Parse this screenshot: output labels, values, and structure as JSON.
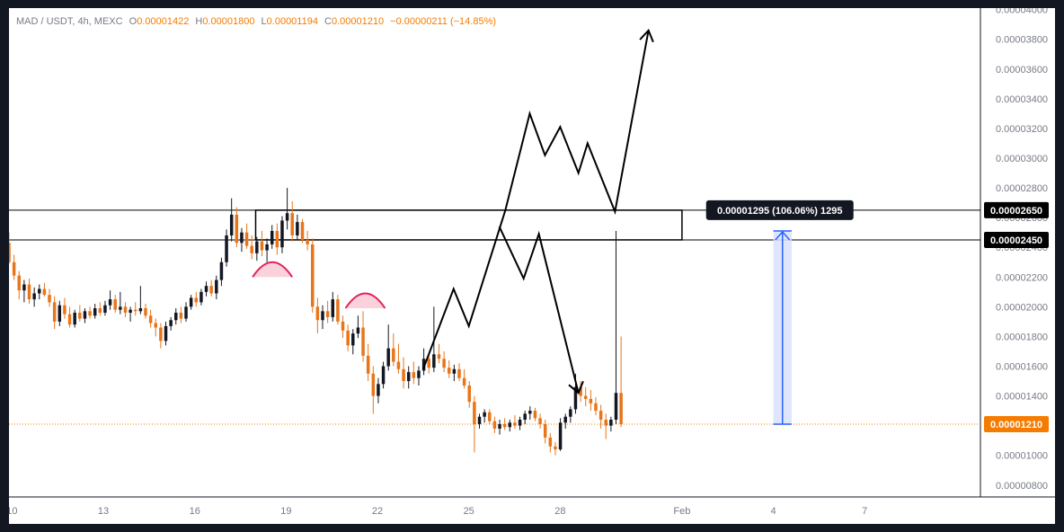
{
  "header": {
    "symbol": "MAD / USDT, 4h, MEXC",
    "o_key": "O",
    "o_val": "0.00001422",
    "h_key": "H",
    "h_val": "0.00001800",
    "l_key": "L",
    "l_val": "0.00001194",
    "c_key": "C",
    "c_val": "0.00001210",
    "change": "−0.00000211 (−14.85%)"
  },
  "chart_data": {
    "type": "candlestick",
    "y_ticks": [
      "0.00004000",
      "0.00003800",
      "0.00003600",
      "0.00003400",
      "0.00003200",
      "0.00003000",
      "0.00002800",
      "0.00002600",
      "0.00002400",
      "0.00002200",
      "0.00002000",
      "0.00001800",
      "0.00001600",
      "0.00001400",
      "0.00001200",
      "0.00001000",
      "0.00000800"
    ],
    "x_ticks": [
      {
        "label": "10",
        "day": 10
      },
      {
        "label": "13",
        "day": 13
      },
      {
        "label": "16",
        "day": 16
      },
      {
        "label": "19",
        "day": 19
      },
      {
        "label": "22",
        "day": 22
      },
      {
        "label": "25",
        "day": 25
      },
      {
        "label": "28",
        "day": 28
      },
      {
        "label": "Feb",
        "day": 32
      },
      {
        "label": "4",
        "day": 35
      },
      {
        "label": "7",
        "day": 38
      }
    ],
    "ylim": [
      7.2e-06,
      4.01e-05
    ],
    "xlim_days": [
      9.9,
      41.8
    ],
    "last_price": {
      "label": "0.00001210",
      "value": 1.21e-05,
      "color": "#f57c00"
    },
    "levels": [
      {
        "label": "0.00002650",
        "value": 2.65e-05
      },
      {
        "label": "0.00002450",
        "value": 2.45e-05
      }
    ],
    "zone": {
      "x1_day": 18.0,
      "x2_day": 32.0,
      "top": 2.65e-05,
      "bottom": 2.45e-05
    },
    "measure": {
      "label": "0.00001295 (106.06%) 1295",
      "from": 1.21e-05,
      "to": 2.51e-05,
      "day_start": 35.0,
      "day_end": 35.6
    },
    "projection_up": [
      [
        23.5,
        1.58e-05
      ],
      [
        24.5,
        2.12e-05
      ],
      [
        25.0,
        1.87e-05
      ],
      [
        26.2,
        2.65e-05
      ],
      [
        27.0,
        3.3e-05
      ],
      [
        27.5,
        3.02e-05
      ],
      [
        28.0,
        3.21e-05
      ],
      [
        28.6,
        2.9e-05
      ],
      [
        28.9,
        3.1e-05
      ],
      [
        29.8,
        2.64e-05
      ],
      [
        30.9,
        3.86e-05
      ]
    ],
    "projection_down": [
      [
        26.0,
        2.54e-05
      ],
      [
        26.8,
        2.19e-05
      ],
      [
        27.3,
        2.49e-05
      ],
      [
        28.6,
        1.42e-05
      ]
    ],
    "pivot_arcs": [
      {
        "center_day": 18.55,
        "base": 2.2e-05,
        "peak": 2.3e-05
      },
      {
        "center_day": 21.6,
        "base": 1.99e-05,
        "peak": 2.09e-05
      }
    ],
    "candles": [
      [
        2.43e-05,
        2.5e-05,
        2.29e-05,
        2.3e-05
      ],
      [
        2.3e-05,
        2.35e-05,
        2.18e-05,
        2.21e-05
      ],
      [
        2.21e-05,
        2.24e-05,
        2.05e-05,
        2.11e-05
      ],
      [
        2.11e-05,
        2.18e-05,
        2.03e-05,
        2.15e-05
      ],
      [
        2.15e-05,
        2.19e-05,
        2.02e-05,
        2.05e-05
      ],
      [
        2.05e-05,
        2.13e-05,
        2e-05,
        2.09e-05
      ],
      [
        2.09e-05,
        2.15e-05,
        2.05e-05,
        2.12e-05
      ],
      [
        2.12e-05,
        2.16e-05,
        2.07e-05,
        2.08e-05
      ],
      [
        2.08e-05,
        2.12e-05,
        2e-05,
        2.03e-05
      ],
      [
        2.03e-05,
        2.07e-05,
        1.85e-05,
        1.9e-05
      ],
      [
        1.9e-05,
        2.04e-05,
        1.87e-05,
        2.01e-05
      ],
      [
        2.01e-05,
        2.06e-05,
        1.92e-05,
        1.95e-05
      ],
      [
        1.95e-05,
        2e-05,
        1.86e-05,
        1.88e-05
      ],
      [
        1.88e-05,
        1.98e-05,
        1.86e-05,
        1.96e-05
      ],
      [
        1.96e-05,
        2.01e-05,
        1.9e-05,
        1.92e-05
      ],
      [
        1.92e-05,
        1.99e-05,
        1.89e-05,
        1.97e-05
      ],
      [
        1.97e-05,
        2e-05,
        1.92e-05,
        1.94e-05
      ],
      [
        1.94e-05,
        2.02e-05,
        1.92e-05,
        1.99e-05
      ],
      [
        1.99e-05,
        2.03e-05,
        1.94e-05,
        1.96e-05
      ],
      [
        1.96e-05,
        2.04e-05,
        1.94e-05,
        2.01e-05
      ],
      [
        2.01e-05,
        2.11e-05,
        1.98e-05,
        2.05e-05
      ],
      [
        2.05e-05,
        2.08e-05,
        1.96e-05,
        1.98e-05
      ],
      [
        1.98e-05,
        2.1e-05,
        1.95e-05,
        2e-05
      ],
      [
        2e-05,
        2.03e-05,
        1.93e-05,
        1.96e-05
      ],
      [
        1.96e-05,
        2e-05,
        1.9e-05,
        1.98e-05
      ],
      [
        1.98e-05,
        2.03e-05,
        1.94e-05,
        1.97e-05
      ],
      [
        1.97e-05,
        2.14e-05,
        1.95e-05,
        1.99e-05
      ],
      [
        1.99e-05,
        2.02e-05,
        1.92e-05,
        1.94e-05
      ],
      [
        1.94e-05,
        1.98e-05,
        1.86e-05,
        1.89e-05
      ],
      [
        1.89e-05,
        1.92e-05,
        1.8e-05,
        1.86e-05
      ],
      [
        1.86e-05,
        1.89e-05,
        1.72e-05,
        1.77e-05
      ],
      [
        1.77e-05,
        1.9e-05,
        1.74e-05,
        1.87e-05
      ],
      [
        1.87e-05,
        1.93e-05,
        1.84e-05,
        1.91e-05
      ],
      [
        1.91e-05,
        1.99e-05,
        1.88e-05,
        1.96e-05
      ],
      [
        1.96e-05,
        2e-05,
        1.89e-05,
        1.92e-05
      ],
      [
        1.92e-05,
        2.03e-05,
        1.9e-05,
        2e-05
      ],
      [
        2e-05,
        2.08e-05,
        1.98e-05,
        2.06e-05
      ],
      [
        2.06e-05,
        2.1e-05,
        2e-05,
        2.03e-05
      ],
      [
        2.03e-05,
        2.12e-05,
        2.01e-05,
        2.1e-05
      ],
      [
        2.1e-05,
        2.17e-05,
        2.07e-05,
        2.14e-05
      ],
      [
        2.14e-05,
        2.18e-05,
        2.07e-05,
        2.09e-05
      ],
      [
        2.09e-05,
        2.21e-05,
        2.05e-05,
        2.18e-05
      ],
      [
        2.18e-05,
        2.33e-05,
        2.14e-05,
        2.3e-05
      ],
      [
        2.3e-05,
        2.52e-05,
        2.27e-05,
        2.48e-05
      ],
      [
        2.48e-05,
        2.73e-05,
        2.44e-05,
        2.62e-05
      ],
      [
        2.62e-05,
        2.67e-05,
        2.4e-05,
        2.43e-05
      ],
      [
        2.43e-05,
        2.53e-05,
        2.37e-05,
        2.5e-05
      ],
      [
        2.5e-05,
        2.56e-05,
        2.39e-05,
        2.41e-05
      ],
      [
        2.41e-05,
        2.48e-05,
        2.32e-05,
        2.36e-05
      ],
      [
        2.36e-05,
        2.47e-05,
        2.31e-05,
        2.44e-05
      ],
      [
        2.44e-05,
        2.51e-05,
        2.34e-05,
        2.38e-05
      ],
      [
        2.38e-05,
        2.46e-05,
        2.3e-05,
        2.42e-05
      ],
      [
        2.42e-05,
        2.55e-05,
        2.39e-05,
        2.51e-05
      ],
      [
        2.51e-05,
        2.56e-05,
        2.35e-05,
        2.4e-05
      ],
      [
        2.4e-05,
        2.61e-05,
        2.36e-05,
        2.58e-05
      ],
      [
        2.58e-05,
        2.8e-05,
        2.52e-05,
        2.63e-05
      ],
      [
        2.63e-05,
        2.71e-05,
        2.44e-05,
        2.48e-05
      ],
      [
        2.48e-05,
        2.62e-05,
        2.45e-05,
        2.57e-05
      ],
      [
        2.57e-05,
        2.59e-05,
        2.43e-05,
        2.45e-05
      ],
      [
        2.45e-05,
        2.51e-05,
        2.38e-05,
        2.42e-05
      ],
      [
        2.42e-05,
        2.46e-05,
        1.96e-05,
        2e-05
      ],
      [
        2e-05,
        2.06e-05,
        1.82e-05,
        1.91e-05
      ],
      [
        1.91e-05,
        2.01e-05,
        1.85e-05,
        1.97e-05
      ],
      [
        1.97e-05,
        2.04e-05,
        1.89e-05,
        1.93e-05
      ],
      [
        1.93e-05,
        2.1e-05,
        1.9e-05,
        2.05e-05
      ],
      [
        2.05e-05,
        2.08e-05,
        1.88e-05,
        1.9e-05
      ],
      [
        1.9e-05,
        1.94e-05,
        1.79e-05,
        1.84e-05
      ],
      [
        1.84e-05,
        1.88e-05,
        1.7e-05,
        1.74e-05
      ],
      [
        1.74e-05,
        1.85e-05,
        1.68e-05,
        1.82e-05
      ],
      [
        1.82e-05,
        1.94e-05,
        1.79e-05,
        1.86e-05
      ],
      [
        1.86e-05,
        1.97e-05,
        1.63e-05,
        1.67e-05
      ],
      [
        1.67e-05,
        1.75e-05,
        1.5e-05,
        1.55e-05
      ],
      [
        1.55e-05,
        1.6e-05,
        1.28e-05,
        1.4e-05
      ],
      [
        1.4e-05,
        1.52e-05,
        1.35e-05,
        1.48e-05
      ],
      [
        1.48e-05,
        1.63e-05,
        1.45e-05,
        1.6e-05
      ],
      [
        1.6e-05,
        1.88e-05,
        1.57e-05,
        1.72e-05
      ],
      [
        1.72e-05,
        1.82e-05,
        1.6e-05,
        1.63e-05
      ],
      [
        1.63e-05,
        1.75e-05,
        1.55e-05,
        1.58e-05
      ],
      [
        1.58e-05,
        1.66e-05,
        1.45e-05,
        1.5e-05
      ],
      [
        1.5e-05,
        1.6e-05,
        1.45e-05,
        1.56e-05
      ],
      [
        1.56e-05,
        1.63e-05,
        1.48e-05,
        1.52e-05
      ],
      [
        1.52e-05,
        1.6e-05,
        1.47e-05,
        1.57e-05
      ],
      [
        1.57e-05,
        1.72e-05,
        1.54e-05,
        1.65e-05
      ],
      [
        1.65e-05,
        1.68e-05,
        1.55e-05,
        1.59e-05
      ],
      [
        1.59e-05,
        2e-05,
        1.56e-05,
        1.68e-05
      ],
      [
        1.68e-05,
        1.75e-05,
        1.62e-05,
        1.65e-05
      ],
      [
        1.65e-05,
        1.7e-05,
        1.56e-05,
        1.59e-05
      ],
      [
        1.59e-05,
        1.64e-05,
        1.52e-05,
        1.55e-05
      ],
      [
        1.55e-05,
        1.61e-05,
        1.5e-05,
        1.58e-05
      ],
      [
        1.58e-05,
        1.62e-05,
        1.5e-05,
        1.52e-05
      ],
      [
        1.52e-05,
        1.58e-05,
        1.45e-05,
        1.47e-05
      ],
      [
        1.47e-05,
        1.5e-05,
        1.32e-05,
        1.36e-05
      ],
      [
        1.36e-05,
        1.4e-05,
        1.02e-05,
        1.21e-05
      ],
      [
        1.21e-05,
        1.28e-05,
        1.18e-05,
        1.26e-05
      ],
      [
        1.26e-05,
        1.31e-05,
        1.22e-05,
        1.29e-05
      ],
      [
        1.29e-05,
        1.31e-05,
        1.21e-05,
        1.23e-05
      ],
      [
        1.23e-05,
        1.26e-05,
        1.15e-05,
        1.18e-05
      ],
      [
        1.18e-05,
        1.24e-05,
        1.14e-05,
        1.21e-05
      ],
      [
        1.21e-05,
        1.25e-05,
        1.17e-05,
        1.19e-05
      ],
      [
        1.19e-05,
        1.24e-05,
        1.16e-05,
        1.22e-05
      ],
      [
        1.22e-05,
        1.27e-05,
        1.18e-05,
        1.2e-05
      ],
      [
        1.2e-05,
        1.26e-05,
        1.17e-05,
        1.24e-05
      ],
      [
        1.24e-05,
        1.3e-05,
        1.21e-05,
        1.28e-05
      ],
      [
        1.28e-05,
        1.33e-05,
        1.24e-05,
        1.3e-05
      ],
      [
        1.3e-05,
        1.32e-05,
        1.23e-05,
        1.25e-05
      ],
      [
        1.25e-05,
        1.28e-05,
        1.18e-05,
        1.21e-05
      ],
      [
        1.21e-05,
        1.24e-05,
        1.08e-05,
        1.12e-05
      ],
      [
        1.12e-05,
        1.15e-05,
        1.02e-05,
        1.06e-05
      ],
      [
        1.06e-05,
        1.09e-05,
        1e-05,
        1.04e-05
      ],
      [
        1.04e-05,
        1.25e-05,
        1.03e-05,
        1.22e-05
      ],
      [
        1.22e-05,
        1.28e-05,
        1.18e-05,
        1.26e-05
      ],
      [
        1.26e-05,
        1.33e-05,
        1.22e-05,
        1.31e-05
      ],
      [
        1.31e-05,
        1.55e-05,
        1.28e-05,
        1.46e-05
      ],
      [
        1.46e-05,
        1.5e-05,
        1.36e-05,
        1.4e-05
      ],
      [
        1.4e-05,
        1.46e-05,
        1.33e-05,
        1.38e-05
      ],
      [
        1.38e-05,
        1.44e-05,
        1.3e-05,
        1.35e-05
      ],
      [
        1.35e-05,
        1.39e-05,
        1.27e-05,
        1.3e-05
      ],
      [
        1.3e-05,
        1.34e-05,
        1.18e-05,
        1.24e-05
      ],
      [
        1.24e-05,
        1.28e-05,
        1.11e-05,
        1.2e-05
      ],
      [
        1.2e-05,
        1.26e-05,
        1.16e-05,
        1.24e-05
      ],
      [
        1.24e-05,
        2.51e-05,
        1.21e-05,
        1.42e-05
      ],
      [
        1.42e-05,
        1.8e-05,
        1.19e-05,
        1.21e-05
      ]
    ]
  },
  "theme": {
    "bull": "#131722",
    "bear": "#e8751a",
    "line": "#000000",
    "arc_stroke": "#e0245e",
    "arc_fill": "#fbd1dc",
    "measure": "#2962ff",
    "measure_fill": "#d9e2fb",
    "tooltip_bg": "#131722"
  }
}
